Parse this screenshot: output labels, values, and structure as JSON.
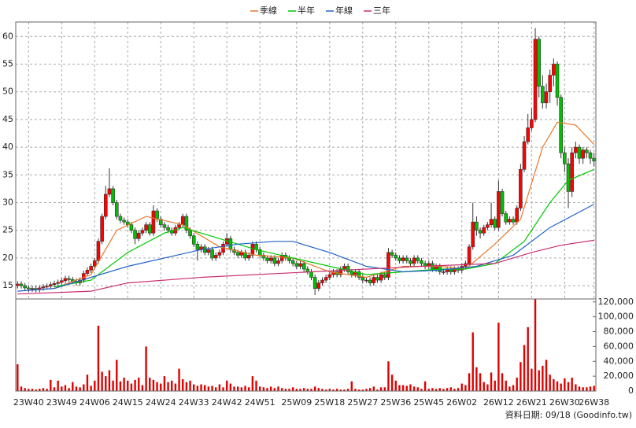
{
  "chart_data": [
    {
      "type": "candlestick",
      "legend": "top",
      "grid": true,
      "ylim": [
        12.6,
        62.6
      ],
      "yticks": [
        15,
        20,
        25,
        30,
        35,
        40,
        45,
        50,
        55,
        60
      ],
      "up_color": "#ff0000",
      "down_color": "#00c000",
      "open": [
        15.0,
        15.3,
        15.0,
        14.6,
        14.4,
        14.5,
        14.3,
        14.6,
        14.8,
        14.9,
        15.2,
        15.4,
        15.6,
        15.9,
        16.3,
        16.1,
        15.8,
        15.5,
        16.0,
        17.2,
        17.8,
        18.5,
        19.5,
        23.0,
        27.5,
        31.5,
        32.5,
        30.0,
        27.5,
        26.8,
        26.5,
        26.0,
        25.0,
        23.5,
        24.5,
        25.0,
        26.0,
        24.5,
        28.5,
        27.0,
        26.0,
        25.5,
        25.0,
        24.5,
        25.5,
        26.0,
        27.5,
        25.0,
        24.0,
        22.5,
        21.5,
        22.0,
        21.0,
        21.5,
        20.0,
        20.5,
        21.0,
        22.5,
        23.5,
        21.5,
        21.0,
        20.5,
        21.0,
        20.0,
        20.5,
        22.5,
        21.5,
        20.5,
        20.0,
        19.5,
        20.0,
        19.0,
        19.5,
        20.5,
        20.0,
        19.5,
        19.0,
        18.5,
        19.0,
        18.0,
        17.5,
        16.5,
        14.5,
        15.5,
        16.0,
        16.5,
        17.0,
        17.5,
        17.0,
        18.0,
        18.5,
        17.5,
        17.0,
        17.5,
        16.5,
        16.0,
        16.0,
        15.5,
        16.5,
        16.0,
        17.0,
        16.5,
        21.0,
        20.5,
        20.0,
        19.5,
        20.0,
        19.5,
        19.0,
        20.0,
        19.5,
        19.0,
        18.5,
        19.0,
        18.0,
        18.5,
        17.5,
        17.5,
        18.0,
        17.5,
        18.0,
        17.8,
        18.5,
        19.0,
        22.0,
        26.5,
        25.0,
        24.5,
        25.5,
        26.0,
        27.0,
        25.5,
        32.0,
        28.0,
        26.5,
        27.0,
        26.5,
        29.0,
        36.0,
        41.0,
        43.5,
        45.0,
        59.5,
        51.0,
        48.0,
        50.0,
        53.0,
        55.0,
        49.0,
        39.0,
        37.0,
        32.0,
        39.0,
        40.0,
        38.0,
        39.5,
        39.0,
        38.0
      ],
      "high": [
        15.8,
        15.8,
        15.5,
        15.1,
        15.0,
        15.0,
        15.1,
        15.3,
        15.4,
        15.7,
        15.9,
        16.1,
        16.4,
        16.8,
        16.8,
        16.6,
        16.3,
        16.5,
        17.7,
        18.3,
        19.0,
        20.0,
        23.5,
        28.0,
        33.0,
        36.2,
        33.0,
        30.5,
        28.0,
        27.3,
        27.0,
        26.5,
        25.5,
        25.0,
        25.5,
        26.5,
        26.5,
        29.5,
        29.0,
        27.5,
        26.5,
        26.0,
        25.5,
        26.0,
        26.5,
        28.0,
        28.0,
        25.5,
        24.5,
        23.0,
        22.5,
        22.5,
        22.0,
        22.0,
        21.0,
        21.5,
        23.0,
        24.5,
        24.0,
        22.0,
        21.5,
        21.5,
        21.5,
        21.0,
        23.0,
        23.0,
        22.0,
        21.0,
        20.5,
        20.5,
        20.5,
        20.0,
        21.0,
        21.0,
        20.5,
        20.0,
        19.5,
        19.5,
        19.5,
        18.5,
        18.0,
        17.0,
        16.0,
        16.5,
        17.0,
        17.5,
        18.0,
        18.0,
        18.5,
        19.0,
        19.0,
        18.0,
        18.0,
        18.0,
        17.0,
        16.5,
        16.5,
        17.0,
        17.0,
        17.5,
        17.5,
        21.8,
        21.5,
        21.0,
        20.5,
        20.5,
        20.5,
        20.0,
        20.5,
        20.5,
        20.0,
        19.5,
        19.5,
        19.5,
        19.0,
        19.0,
        18.0,
        18.5,
        18.5,
        18.5,
        18.5,
        19.0,
        19.5,
        22.5,
        30.0,
        27.5,
        25.5,
        26.0,
        26.5,
        30.0,
        27.5,
        34.0,
        32.5,
        28.5,
        27.5,
        27.5,
        29.5,
        37.0,
        42.0,
        46.0,
        47.0,
        61.5,
        60.0,
        53.0,
        51.5,
        54.0,
        56.0,
        55.5,
        49.5,
        40.0,
        38.0,
        40.0,
        41.0,
        40.5,
        40.0,
        40.0,
        39.5,
        39.0
      ],
      "low": [
        14.5,
        14.5,
        14.1,
        13.9,
        13.9,
        13.8,
        13.8,
        14.1,
        14.3,
        14.4,
        14.7,
        14.9,
        15.1,
        15.4,
        15.6,
        15.3,
        15.0,
        15.0,
        15.5,
        16.7,
        17.3,
        18.0,
        19.0,
        22.5,
        27.0,
        31.0,
        29.5,
        27.0,
        26.3,
        26.0,
        25.5,
        24.5,
        22.5,
        23.0,
        24.0,
        24.5,
        24.0,
        24.0,
        26.5,
        25.5,
        25.0,
        24.5,
        24.0,
        24.0,
        25.0,
        25.5,
        24.5,
        23.5,
        22.0,
        19.5,
        21.0,
        20.5,
        20.5,
        19.5,
        19.5,
        20.0,
        20.5,
        22.0,
        21.0,
        20.5,
        20.0,
        20.0,
        19.5,
        19.5,
        20.0,
        21.0,
        20.0,
        19.5,
        19.0,
        19.0,
        18.5,
        18.5,
        19.0,
        19.5,
        19.0,
        18.5,
        18.0,
        18.0,
        17.5,
        17.0,
        16.0,
        13.3,
        14.0,
        15.0,
        15.5,
        16.0,
        16.5,
        16.5,
        16.5,
        17.5,
        17.0,
        16.5,
        16.5,
        16.0,
        15.5,
        15.5,
        15.0,
        15.0,
        15.5,
        15.5,
        16.0,
        16.0,
        20.0,
        19.5,
        19.0,
        19.0,
        19.0,
        18.5,
        18.5,
        19.0,
        18.5,
        18.0,
        18.0,
        17.5,
        17.5,
        17.0,
        17.0,
        17.0,
        17.0,
        17.0,
        17.3,
        17.3,
        18.0,
        18.5,
        21.5,
        24.0,
        23.5,
        24.0,
        25.0,
        25.5,
        25.0,
        25.0,
        27.5,
        26.0,
        26.0,
        26.0,
        26.0,
        28.5,
        35.5,
        40.5,
        43.0,
        44.5,
        49.0,
        47.0,
        47.0,
        48.0,
        51.0,
        47.5,
        38.0,
        35.5,
        29.0,
        31.0,
        38.0,
        37.0,
        37.0,
        38.0,
        37.0,
        36.5
      ],
      "close": [
        15.3,
        15.0,
        14.6,
        14.4,
        14.5,
        14.3,
        14.6,
        14.8,
        14.9,
        15.2,
        15.4,
        15.6,
        15.9,
        16.3,
        16.1,
        15.8,
        15.5,
        16.0,
        17.2,
        17.8,
        18.5,
        19.5,
        23.0,
        27.5,
        31.5,
        32.5,
        30.0,
        27.5,
        26.8,
        26.5,
        26.0,
        25.0,
        23.5,
        24.5,
        25.0,
        26.0,
        24.5,
        28.5,
        27.0,
        26.0,
        25.5,
        25.0,
        24.5,
        25.5,
        26.0,
        27.5,
        25.0,
        24.0,
        22.5,
        21.5,
        22.0,
        21.0,
        21.5,
        20.0,
        20.5,
        21.0,
        22.5,
        23.5,
        21.5,
        21.0,
        20.5,
        21.0,
        20.0,
        20.5,
        22.5,
        21.5,
        20.5,
        20.0,
        19.5,
        20.0,
        19.0,
        19.5,
        20.5,
        20.0,
        19.5,
        19.0,
        18.5,
        19.0,
        18.0,
        17.5,
        16.5,
        14.5,
        15.5,
        16.0,
        16.5,
        17.0,
        17.5,
        17.0,
        18.0,
        18.5,
        17.5,
        17.0,
        17.5,
        16.5,
        16.0,
        16.0,
        15.5,
        16.5,
        16.0,
        17.0,
        16.5,
        21.0,
        20.5,
        20.0,
        19.5,
        20.0,
        19.5,
        19.0,
        20.0,
        19.5,
        19.0,
        18.5,
        19.0,
        18.0,
        18.5,
        17.5,
        17.5,
        18.0,
        17.5,
        18.0,
        17.8,
        18.5,
        19.0,
        22.0,
        26.5,
        25.0,
        24.5,
        25.5,
        26.0,
        27.0,
        25.5,
        32.0,
        28.0,
        26.5,
        27.0,
        26.5,
        29.0,
        36.0,
        41.0,
        43.5,
        45.0,
        59.5,
        51.0,
        48.0,
        50.0,
        53.0,
        55.0,
        49.0,
        39.0,
        37.0,
        32.0,
        39.0,
        40.0,
        38.0,
        39.5,
        39.0,
        38.0,
        37.5
      ],
      "lines": [
        {
          "name": "季線",
          "color": "#e8782a",
          "x": [
            10,
            20,
            27,
            35,
            45,
            55,
            65,
            75,
            85,
            95,
            105,
            115,
            122,
            130,
            137,
            143,
            147,
            152,
            157
          ],
          "values": [
            14.5,
            17,
            25,
            27.5,
            26,
            22,
            20.5,
            20,
            17.5,
            16.5,
            18.5,
            18.5,
            18,
            22.5,
            27,
            40,
            44.5,
            44,
            40.5
          ]
        },
        {
          "name": "半年",
          "color": "#00c800",
          "x": [
            10,
            20,
            30,
            40,
            45,
            55,
            65,
            75,
            85,
            95,
            105,
            115,
            122,
            130,
            138,
            145,
            150,
            157
          ],
          "values": [
            14.8,
            16,
            21,
            24.5,
            25.5,
            23.5,
            21.5,
            20,
            18.5,
            17,
            17.5,
            18,
            18,
            19,
            23,
            30,
            34,
            36
          ]
        },
        {
          "name": "年線",
          "color": "#2060c8",
          "x": [
            0,
            10,
            20,
            30,
            40,
            50,
            60,
            70,
            75,
            85,
            95,
            105,
            115,
            125,
            135,
            145,
            157
          ],
          "values": [
            14,
            14.5,
            16.5,
            18.5,
            20,
            21.5,
            22.5,
            23,
            23,
            21,
            18.5,
            17.5,
            17.8,
            18.5,
            20.5,
            25.5,
            29.7
          ]
        },
        {
          "name": "三年",
          "color": "#c8306e",
          "x": [
            0,
            20,
            30,
            50,
            80,
            110,
            130,
            140,
            148,
            157
          ],
          "values": [
            13.5,
            14,
            15.5,
            16.5,
            17.5,
            18.5,
            19,
            21,
            22.3,
            23.2
          ]
        }
      ]
    },
    {
      "type": "bar",
      "color": "#e00000",
      "grid": false,
      "ylim": [
        0,
        124000
      ],
      "yticks": [
        0,
        {
          "value": 20000,
          "label": "20,000"
        },
        {
          "value": 40000,
          "label": "40,000"
        },
        {
          "value": 60000,
          "label": "60,000"
        },
        {
          "value": 80000,
          "label": "80,000"
        },
        {
          "value": 100000,
          "label": "100,000"
        },
        {
          "value": 120000,
          "label": "120,000"
        }
      ],
      "categories": [
        null,
        null,
        null,
        "23W40",
        null,
        null,
        null,
        null,
        null,
        null,
        null,
        null,
        "23W49",
        null,
        null,
        null,
        null,
        null,
        null,
        null,
        null,
        "24W06",
        null,
        null,
        null,
        null,
        null,
        null,
        null,
        null,
        "24W15",
        null,
        null,
        null,
        null,
        null,
        null,
        null,
        null,
        "24W24",
        null,
        null,
        null,
        null,
        null,
        null,
        null,
        null,
        "24W33",
        null,
        null,
        null,
        null,
        null,
        null,
        null,
        null,
        "24W42",
        null,
        null,
        null,
        null,
        null,
        null,
        null,
        null,
        "24W51",
        null,
        null,
        null,
        null,
        null,
        null,
        null,
        null,
        null,
        "25W09",
        null,
        null,
        null,
        null,
        null,
        null,
        null,
        null,
        "25W18",
        null,
        null,
        null,
        null,
        null,
        null,
        null,
        null,
        "25W27",
        null,
        null,
        null,
        null,
        null,
        null,
        null,
        null,
        "25W36",
        null,
        null,
        null,
        null,
        null,
        null,
        null,
        null,
        "25W45",
        null,
        null,
        null,
        null,
        null,
        null,
        null,
        null,
        "26W02",
        null,
        null,
        null,
        null,
        null,
        null,
        null,
        null,
        null,
        "26W12",
        null,
        null,
        null,
        null,
        null,
        null,
        null,
        null,
        "26W21",
        null,
        null,
        null,
        null,
        null,
        null,
        null,
        null,
        "26W30",
        null,
        null,
        null,
        null,
        null,
        null,
        null,
        "26W38"
      ],
      "values": [
        36000,
        6000,
        4000,
        3000,
        3000,
        2000,
        3000,
        4000,
        3000,
        15000,
        5000,
        14000,
        6000,
        8000,
        4000,
        12000,
        6000,
        5000,
        9000,
        22000,
        7000,
        14000,
        88000,
        26000,
        20000,
        28000,
        14000,
        42000,
        13000,
        18000,
        14000,
        10000,
        15000,
        18000,
        8000,
        60000,
        18000,
        15000,
        12000,
        10000,
        20000,
        12000,
        14000,
        10000,
        30000,
        16000,
        12000,
        14000,
        9000,
        7000,
        9000,
        8000,
        6000,
        7000,
        5000,
        9000,
        5000,
        14000,
        10000,
        6000,
        6000,
        5000,
        7000,
        5000,
        20000,
        14000,
        6000,
        5000,
        4000,
        6000,
        4000,
        6000,
        4000,
        3000,
        3000,
        5000,
        3000,
        3000,
        4000,
        3000,
        3000,
        6000,
        4000,
        3000,
        2000,
        3000,
        2000,
        3000,
        2000,
        2000,
        3000,
        13000,
        3000,
        2000,
        2000,
        3000,
        4000,
        6000,
        2000,
        5000,
        5000,
        40000,
        22000,
        14000,
        8000,
        8000,
        7000,
        9000,
        6000,
        5000,
        3000,
        13000,
        3000,
        4000,
        3000,
        4000,
        3000,
        4000,
        5000,
        3000,
        4000,
        10000,
        8000,
        24000,
        79000,
        32000,
        24000,
        12000,
        9000,
        25000,
        14000,
        92000,
        24000,
        14000,
        6000,
        8000,
        18000,
        39000,
        62000,
        86000,
        30000,
        124000,
        28000,
        34000,
        42000,
        22000,
        16000,
        13000,
        10000,
        17000,
        12000,
        18000,
        9000,
        6000,
        5000,
        5000,
        6000,
        7000
      ]
    }
  ],
  "footer": "資料日期: 09/18 (Goodinfo.tw)"
}
